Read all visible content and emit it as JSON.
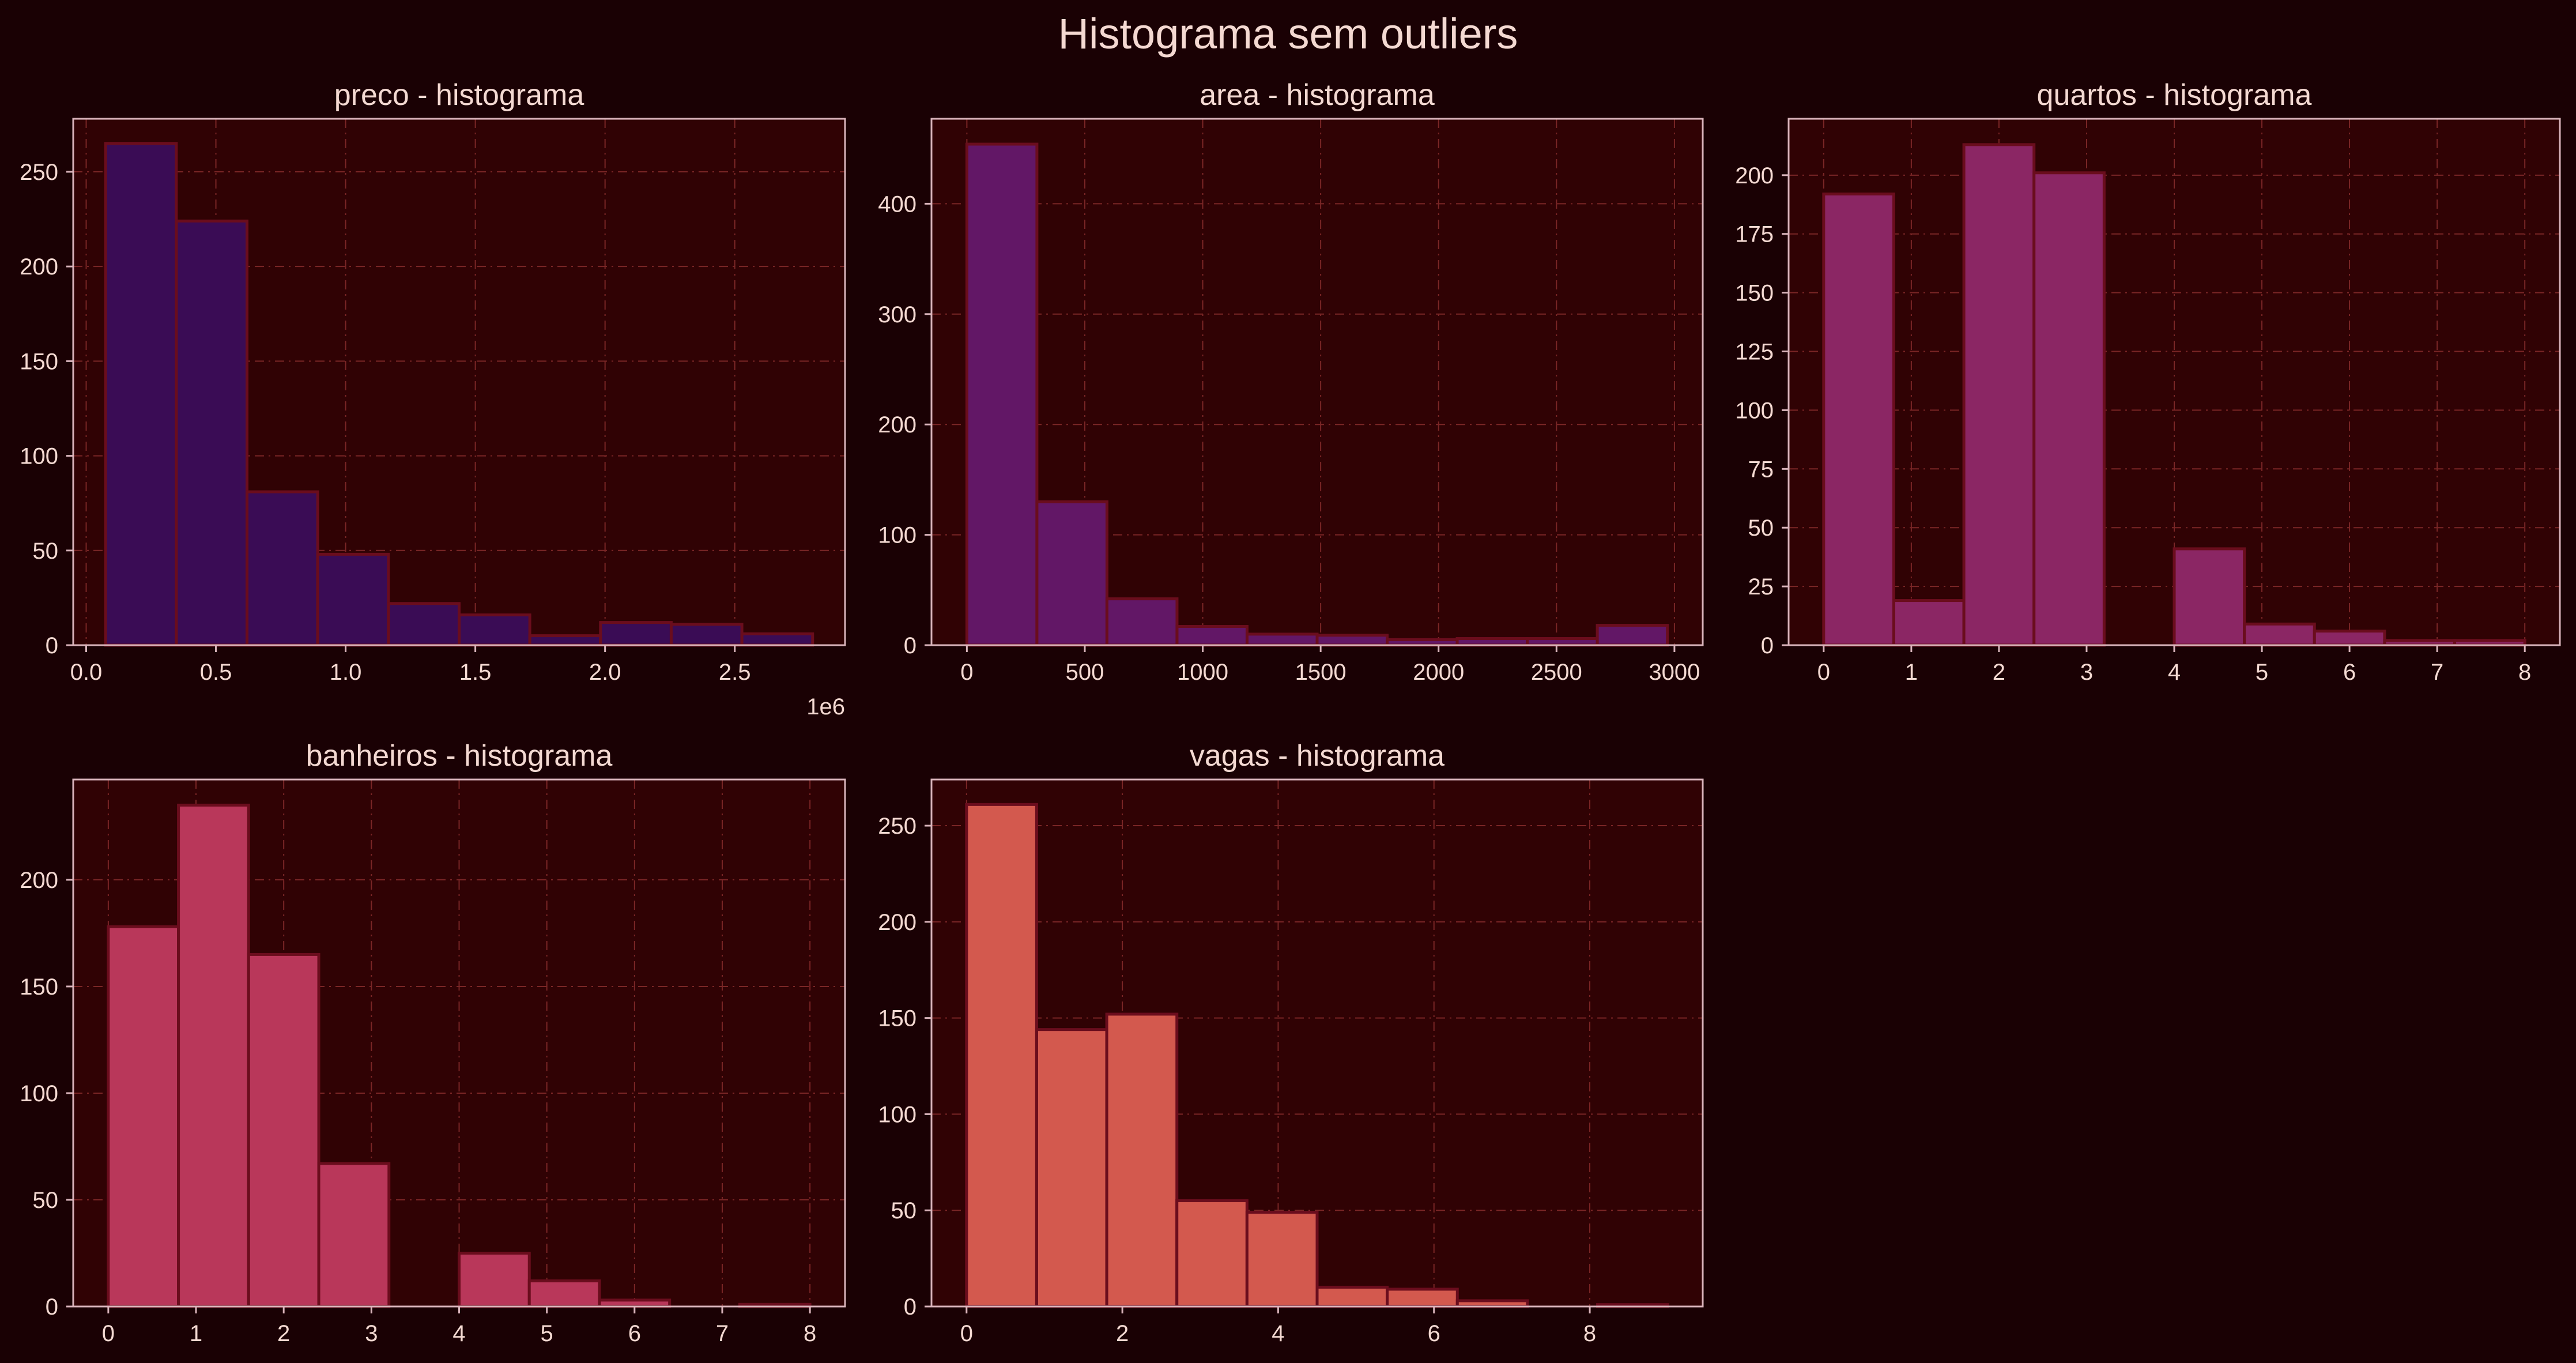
{
  "title": "Histograma sem outliers",
  "colors": {
    "background": "#1a0104",
    "axes_face": "#300204",
    "axes_edge": "#d9b4bb",
    "grid": "#7a2626",
    "text": "#f4d9d2",
    "bar_edge": "#6a0d1d"
  },
  "chart_data": [
    {
      "type": "bar",
      "id": "preco",
      "title": "preco - histograma",
      "color": "#3a0c55",
      "bin_edges": [
        75000,
        347500,
        620000,
        892500,
        1165000,
        1437500,
        1710000,
        1982500,
        2255000,
        2527500,
        2800000
      ],
      "values": [
        265,
        224,
        81,
        48,
        22,
        16,
        5,
        12,
        11,
        6
      ],
      "xlim": [
        -50000,
        2925000
      ],
      "ylim": [
        0,
        278
      ],
      "xticks": [
        0,
        500000,
        1000000,
        1500000,
        2000000,
        2500000
      ],
      "xtick_labels": [
        "0.0",
        "0.5",
        "1.0",
        "1.5",
        "2.0",
        "2.5"
      ],
      "yticks": [
        0,
        50,
        100,
        150,
        200,
        250
      ],
      "ytick_labels": [
        "0",
        "50",
        "100",
        "150",
        "200",
        "250"
      ],
      "x_offset_label": "1e6",
      "grid": true
    },
    {
      "type": "bar",
      "id": "area",
      "title": "area - histograma",
      "color": "#621766",
      "bin_edges": [
        0,
        297,
        594,
        891,
        1188,
        1485,
        1782,
        2079,
        2376,
        2673,
        2970
      ],
      "values": [
        454,
        130,
        42,
        17,
        10,
        9,
        5,
        6,
        6,
        18
      ],
      "xlim": [
        -150,
        3120
      ],
      "ylim": [
        0,
        477
      ],
      "xticks": [
        0,
        500,
        1000,
        1500,
        2000,
        2500,
        3000
      ],
      "xtick_labels": [
        "0",
        "500",
        "1000",
        "1500",
        "2000",
        "2500",
        "3000"
      ],
      "yticks": [
        0,
        100,
        200,
        300,
        400
      ],
      "ytick_labels": [
        "0",
        "100",
        "200",
        "300",
        "400"
      ],
      "grid": true
    },
    {
      "type": "bar",
      "id": "quartos",
      "title": "quartos - histograma",
      "color": "#8b2664",
      "bin_edges": [
        0,
        0.8,
        1.6,
        2.4,
        3.2,
        4.0,
        4.8,
        5.6,
        6.4,
        7.2,
        8.0
      ],
      "values": [
        192,
        19,
        213,
        201,
        0,
        41,
        9,
        6,
        2,
        2
      ],
      "xlim": [
        -0.4,
        8.4
      ],
      "ylim": [
        0,
        224
      ],
      "xticks": [
        0,
        1,
        2,
        3,
        4,
        5,
        6,
        7,
        8
      ],
      "xtick_labels": [
        "0",
        "1",
        "2",
        "3",
        "4",
        "5",
        "6",
        "7",
        "8"
      ],
      "yticks": [
        0,
        25,
        50,
        75,
        100,
        125,
        150,
        175,
        200
      ],
      "ytick_labels": [
        "0",
        "25",
        "50",
        "75",
        "100",
        "125",
        "150",
        "175",
        "200"
      ],
      "grid": true
    },
    {
      "type": "bar",
      "id": "banheiros",
      "title": "banheiros - histograma",
      "color": "#b9375a",
      "bin_edges": [
        0,
        0.8,
        1.6,
        2.4,
        3.2,
        4.0,
        4.8,
        5.6,
        6.4,
        7.2,
        8.0
      ],
      "values": [
        178,
        235,
        165,
        67,
        0,
        25,
        12,
        3,
        0,
        1
      ],
      "xlim": [
        -0.4,
        8.4
      ],
      "ylim": [
        0,
        247
      ],
      "xticks": [
        0,
        1,
        2,
        3,
        4,
        5,
        6,
        7,
        8
      ],
      "xtick_labels": [
        "0",
        "1",
        "2",
        "3",
        "4",
        "5",
        "6",
        "7",
        "8"
      ],
      "yticks": [
        0,
        50,
        100,
        150,
        200
      ],
      "ytick_labels": [
        "0",
        "50",
        "100",
        "150",
        "200"
      ],
      "grid": true
    },
    {
      "type": "bar",
      "id": "vagas",
      "title": "vagas - histograma",
      "color": "#d3594e",
      "bin_edges": [
        0,
        0.9,
        1.8,
        2.7,
        3.6,
        4.5,
        5.4,
        6.3,
        7.2,
        8.1,
        9.0
      ],
      "values": [
        261,
        144,
        152,
        55,
        49,
        10,
        9,
        3,
        0,
        1
      ],
      "xlim": [
        -0.45,
        9.45
      ],
      "ylim": [
        0,
        274
      ],
      "xticks": [
        0,
        2,
        4,
        6,
        8
      ],
      "xtick_labels": [
        "0",
        "2",
        "4",
        "6",
        "8"
      ],
      "yticks": [
        0,
        50,
        100,
        150,
        200,
        250
      ],
      "ytick_labels": [
        "0",
        "50",
        "100",
        "150",
        "200",
        "250"
      ],
      "grid": true
    }
  ]
}
